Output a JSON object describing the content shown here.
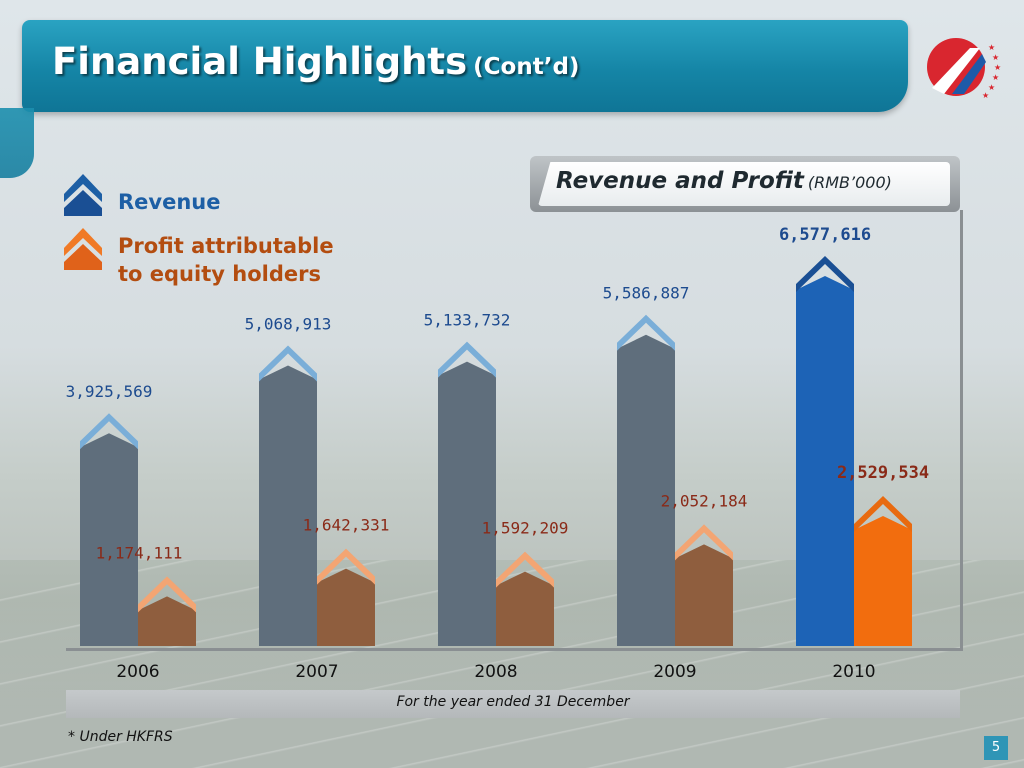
{
  "slide": {
    "title": "Financial Highlights",
    "title_suffix": "(Cont’d)",
    "panel_title": "Revenue and Profit",
    "panel_unit": "(RMB’000)",
    "footer": "For the year ended 31 December",
    "note": "* Under HKFRS",
    "page_number": "5"
  },
  "legend": [
    {
      "label_line1": "Revenue",
      "label_line2": "",
      "color": "#1d5fa5",
      "icon": "chevron-up-blue-icon"
    },
    {
      "label_line1": "Profit attributable",
      "label_line2": "to equity holders",
      "color": "#b34d10",
      "icon": "chevron-up-orange-icon"
    }
  ],
  "colors": {
    "revenue_bar": "#5f6e7c",
    "revenue_cap": "#7aaed8",
    "revenue_bar_highlight": "#1d63b6",
    "revenue_cap_highlight": "#1a4f94",
    "profit_bar": "#8f5e3e",
    "profit_cap": "#f3a573",
    "profit_bar_highlight": "#f26d0e",
    "profit_cap_highlight": "#e86a10",
    "revenue_label": "#1d4b8f",
    "profit_label": "#8a2a18"
  },
  "chart_data": {
    "type": "bar",
    "categories": [
      "2006",
      "2007",
      "2008",
      "2009",
      "2010"
    ],
    "series": [
      {
        "name": "Revenue",
        "values": [
          3925569,
          5068913,
          5133732,
          5586887,
          6577616
        ]
      },
      {
        "name": "Profit attributable to equity holders",
        "values": [
          1174111,
          1642331,
          1592209,
          2052184,
          2529534
        ]
      }
    ],
    "value_labels": {
      "Revenue": [
        "3,925,569",
        "5,068,913",
        "5,133,732",
        "5,586,887",
        "6,577,616"
      ],
      "Profit attributable to equity holders": [
        "1,174,111",
        "1,642,331",
        "1,592,209",
        "2,052,184",
        "2,529,534"
      ]
    },
    "highlight_category": "2010",
    "title": "Revenue and Profit",
    "xlabel": "For the year ended 31 December",
    "ylabel": "",
    "ylim": [
      0,
      7500000
    ],
    "grid": false
  }
}
